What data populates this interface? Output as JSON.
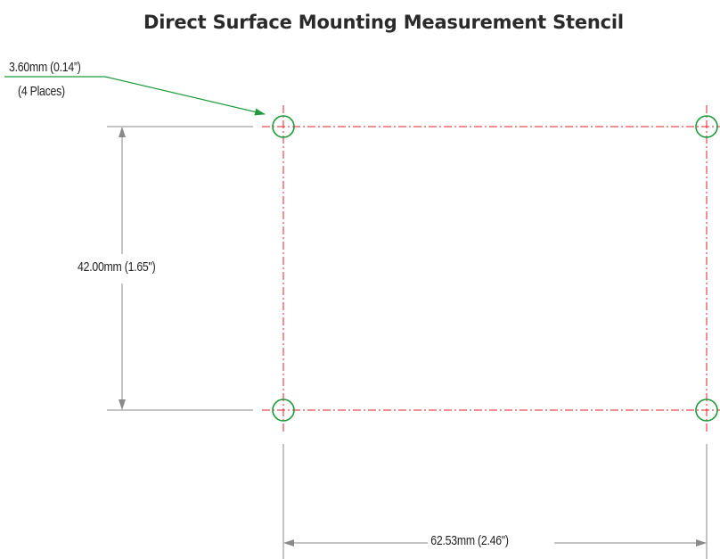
{
  "title": "Direct Surface Mounting Measurement Stencil",
  "hole_callout": {
    "size_text": "3.60mm (0.14”)",
    "count_text": "(4 Places)"
  },
  "dimensions": {
    "height_text": "42.00mm (1.65\")",
    "width_text": "62.53mm (2.46\")"
  },
  "colors": {
    "text": "#222222",
    "title": "#2a2a2a",
    "centerline": "#e0202a",
    "hole": "#1e9a3a",
    "leader": "#1e9a3a",
    "dimension_line": "#707070"
  }
}
